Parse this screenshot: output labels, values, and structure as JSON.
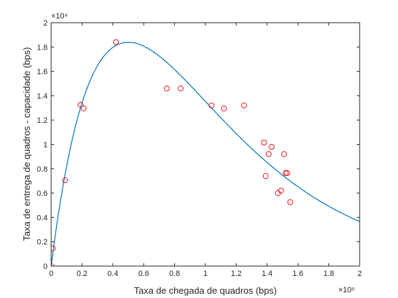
{
  "chart_data": {
    "type": "scatter",
    "xlabel": "Taxa de chegada de quadros (bps)",
    "ylabel": "Taxa de entrega de quadros - capacidade (bps)",
    "xlim": [
      0,
      200000
    ],
    "ylim": [
      0,
      20000
    ],
    "x_scale_label": "×10⁵",
    "y_scale_label": "×10⁴",
    "xticks": [
      0,
      20000,
      40000,
      60000,
      80000,
      100000,
      120000,
      140000,
      160000,
      180000,
      200000
    ],
    "xtick_labels": [
      "0",
      "0.2",
      "0.4",
      "0.6",
      "0.8",
      "1",
      "1.2",
      "1.4",
      "1.6",
      "1.8",
      "2"
    ],
    "yticks": [
      0,
      2000,
      4000,
      6000,
      8000,
      10000,
      12000,
      14000,
      16000,
      18000,
      20000
    ],
    "ytick_labels": [
      "0",
      "0.2",
      "0.4",
      "0.6",
      "0.8",
      "1",
      "1.2",
      "1.4",
      "1.6",
      "1.8",
      "2"
    ],
    "grid": false,
    "colors": {
      "markers": "#e41a1c",
      "curve": "#0072BD",
      "axes": "#262626"
    },
    "series": [
      {
        "type": "scatter",
        "marker": "circle",
        "x": [
          0,
          1000,
          9000,
          19000,
          21000,
          42000,
          75000,
          84000,
          104000,
          112000,
          125000,
          138000,
          139000,
          141000,
          143000,
          147000,
          149000,
          151000,
          152000,
          153000,
          155000
        ],
        "y": [
          0,
          1450,
          7050,
          13250,
          12950,
          18400,
          14600,
          14600,
          13200,
          12950,
          13200,
          10150,
          7400,
          9200,
          9800,
          6000,
          6200,
          9200,
          7650,
          7650,
          5250
        ]
      },
      {
        "type": "line",
        "model": "y = a*x*exp(-x/b)",
        "a": 1.0,
        "b": 50000,
        "x_range": [
          0,
          200000
        ]
      }
    ]
  }
}
